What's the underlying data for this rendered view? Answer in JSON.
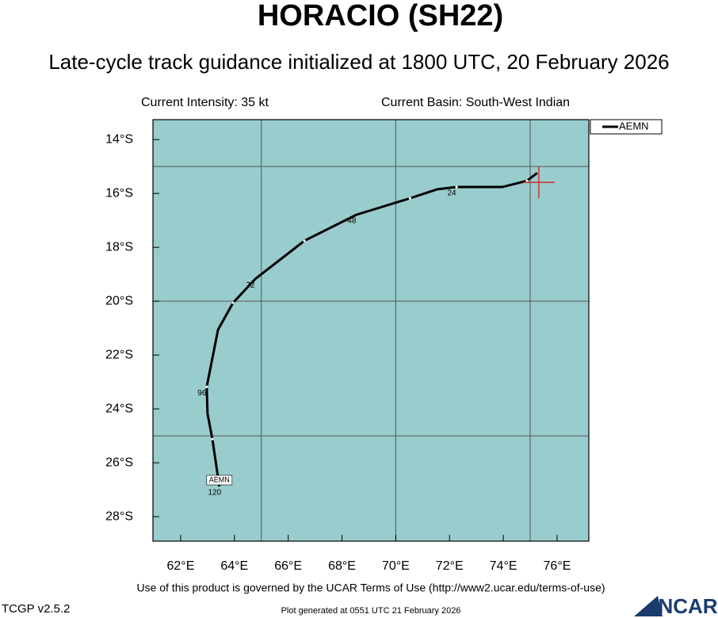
{
  "chart_data": {
    "type": "track",
    "title": "HORACIO (SH22)",
    "subtitle": "Late-cycle track guidance initialized at 1800 UTC, 20 February 2026",
    "intensity": "Current Intensity: 35 kt",
    "basin": "Current Basin: South-West Indian",
    "terms": "Use of this product is governed by the UCAR Terms of Use (http://www2.ucar.edu/terms-of-use)",
    "version": "TCGP v2.5.2",
    "generated": "Plot generated at 0551 UTC   21 February 2026",
    "logo": "NCAR",
    "background": "#99cccc",
    "xlim": [
      60.97,
      77.18
    ],
    "ylim": [
      -28.91,
      -13.26
    ],
    "xticks": [
      {
        "value": 62,
        "label": "62°E"
      },
      {
        "value": 64,
        "label": "64°E"
      },
      {
        "value": 66,
        "label": "66°E"
      },
      {
        "value": 68,
        "label": "68°E"
      },
      {
        "value": 70,
        "label": "70°E"
      },
      {
        "value": 72,
        "label": "72°E"
      },
      {
        "value": 74,
        "label": "74°E"
      },
      {
        "value": 76,
        "label": "76°E"
      }
    ],
    "yticks": [
      {
        "value": -14,
        "label": "14°S"
      },
      {
        "value": -16,
        "label": "16°S"
      },
      {
        "value": -18,
        "label": "18°S"
      },
      {
        "value": -20,
        "label": "20°S"
      },
      {
        "value": -22,
        "label": "22°S"
      },
      {
        "value": -24,
        "label": "24°S"
      },
      {
        "value": -26,
        "label": "26°S"
      },
      {
        "value": -28,
        "label": "28°S"
      }
    ],
    "xgrid": [
      65,
      70,
      75
    ],
    "ygrid": [
      -15,
      -20,
      -25
    ],
    "current_position": {
      "x": 75.32,
      "y": -15.59,
      "color": "#cc2222"
    },
    "x": [
      75.26,
      74.88,
      73.97,
      72.26,
      71.53,
      70.53,
      68.54,
      66.6,
      64.77,
      63.95,
      63.39,
      62.97,
      63.0,
      63.18,
      63.44
    ],
    "series": [
      {
        "name": "AEMN",
        "color": "#000000",
        "values": [
          -15.24,
          -15.53,
          -15.76,
          -15.76,
          -15.85,
          -16.18,
          -16.79,
          -17.76,
          -19.18,
          -20.06,
          -21.06,
          -23.18,
          -24.18,
          -25.12,
          -26.88
        ],
        "point_labels": [
          null,
          null,
          null,
          "24",
          null,
          null,
          "48",
          null,
          "72",
          null,
          null,
          "96",
          null,
          null,
          "120"
        ]
      }
    ]
  }
}
